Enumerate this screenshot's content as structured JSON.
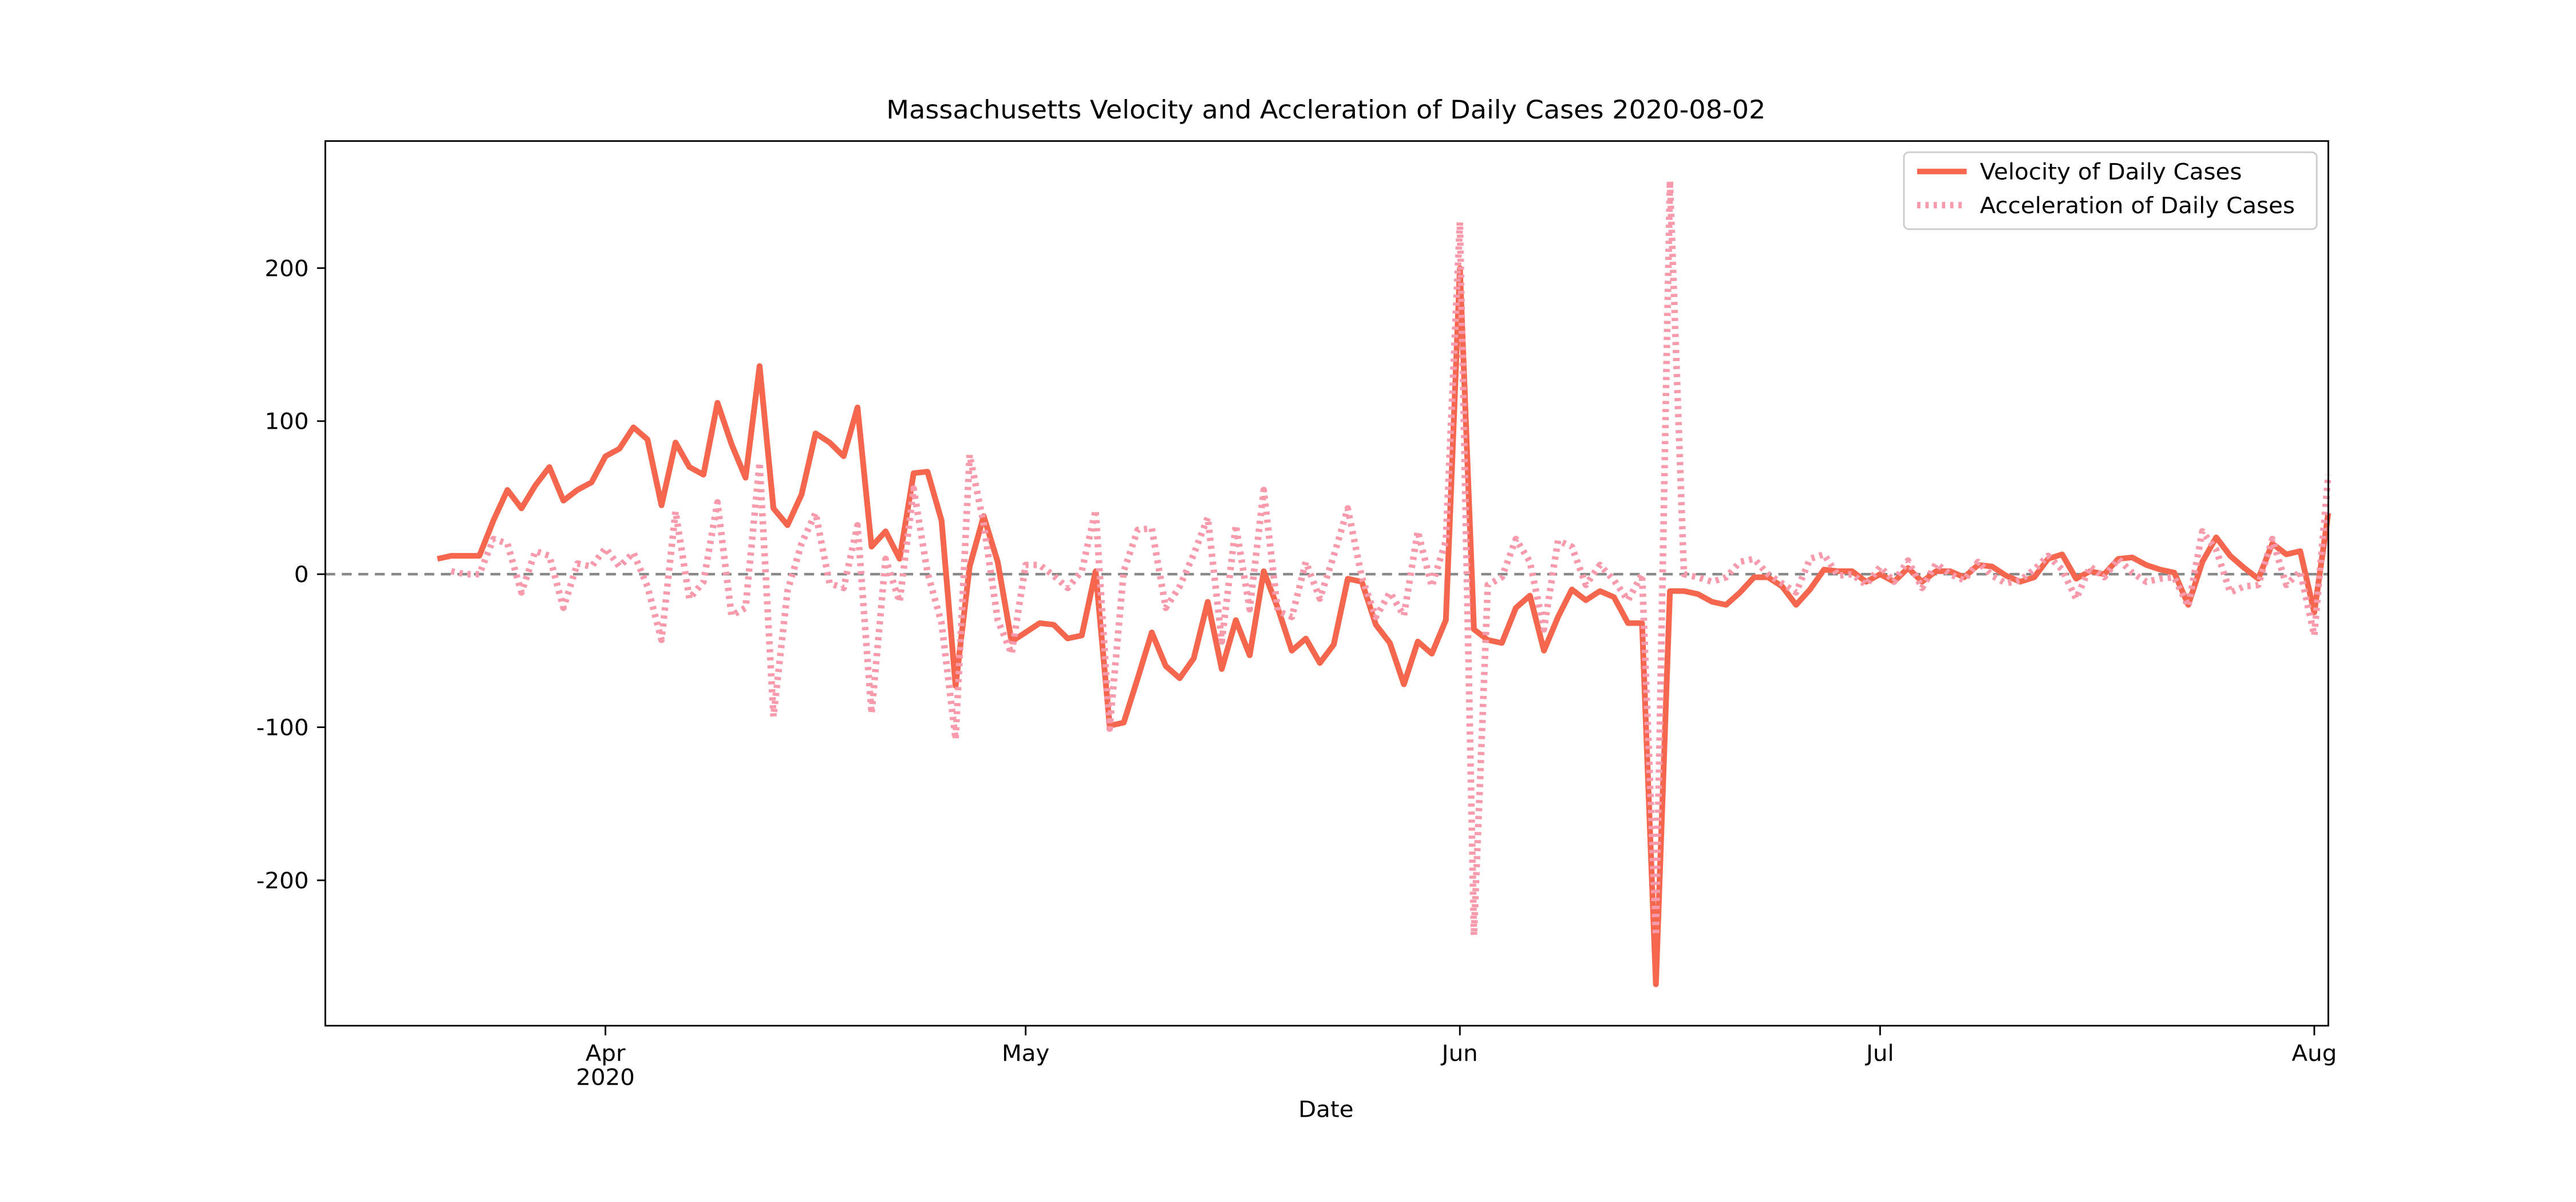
{
  "chart_data": {
    "type": "line",
    "title": "Massachusetts Velocity and Accleration of Daily Cases 2020-08-02",
    "xlabel": "Date",
    "x": [
      "2020-03-20",
      "2020-03-21",
      "2020-03-22",
      "2020-03-23",
      "2020-03-24",
      "2020-03-25",
      "2020-03-26",
      "2020-03-27",
      "2020-03-28",
      "2020-03-29",
      "2020-03-30",
      "2020-03-31",
      "2020-04-01",
      "2020-04-02",
      "2020-04-03",
      "2020-04-04",
      "2020-04-05",
      "2020-04-06",
      "2020-04-07",
      "2020-04-08",
      "2020-04-09",
      "2020-04-10",
      "2020-04-11",
      "2020-04-12",
      "2020-04-13",
      "2020-04-14",
      "2020-04-15",
      "2020-04-16",
      "2020-04-17",
      "2020-04-18",
      "2020-04-19",
      "2020-04-20",
      "2020-04-21",
      "2020-04-22",
      "2020-04-23",
      "2020-04-24",
      "2020-04-25",
      "2020-04-26",
      "2020-04-27",
      "2020-04-28",
      "2020-04-29",
      "2020-04-30",
      "2020-05-01",
      "2020-05-02",
      "2020-05-03",
      "2020-05-04",
      "2020-05-05",
      "2020-05-06",
      "2020-05-07",
      "2020-05-08",
      "2020-05-09",
      "2020-05-10",
      "2020-05-11",
      "2020-05-12",
      "2020-05-13",
      "2020-05-14",
      "2020-05-15",
      "2020-05-16",
      "2020-05-17",
      "2020-05-18",
      "2020-05-19",
      "2020-05-20",
      "2020-05-21",
      "2020-05-22",
      "2020-05-23",
      "2020-05-24",
      "2020-05-25",
      "2020-05-26",
      "2020-05-27",
      "2020-05-28",
      "2020-05-29",
      "2020-05-30",
      "2020-05-31",
      "2020-06-01",
      "2020-06-02",
      "2020-06-03",
      "2020-06-04",
      "2020-06-05",
      "2020-06-06",
      "2020-06-07",
      "2020-06-08",
      "2020-06-09",
      "2020-06-10",
      "2020-06-11",
      "2020-06-12",
      "2020-06-13",
      "2020-06-14",
      "2020-06-15",
      "2020-06-16",
      "2020-06-17",
      "2020-06-18",
      "2020-06-19",
      "2020-06-20",
      "2020-06-21",
      "2020-06-22",
      "2020-06-23",
      "2020-06-24",
      "2020-06-25",
      "2020-06-26",
      "2020-06-27",
      "2020-06-28",
      "2020-06-29",
      "2020-06-30",
      "2020-07-01",
      "2020-07-02",
      "2020-07-03",
      "2020-07-04",
      "2020-07-05",
      "2020-07-06",
      "2020-07-07",
      "2020-07-08",
      "2020-07-09",
      "2020-07-10",
      "2020-07-11",
      "2020-07-12",
      "2020-07-13",
      "2020-07-14",
      "2020-07-15",
      "2020-07-16",
      "2020-07-17",
      "2020-07-18",
      "2020-07-19",
      "2020-07-20",
      "2020-07-21",
      "2020-07-22",
      "2020-07-23",
      "2020-07-24",
      "2020-07-25",
      "2020-07-26",
      "2020-07-27",
      "2020-07-28",
      "2020-07-29",
      "2020-07-30",
      "2020-07-31",
      "2020-08-01",
      "2020-08-02"
    ],
    "series": [
      {
        "name": "Velocity of Daily Cases",
        "color": "#f4674e",
        "style": "solid",
        "values": [
          10,
          12,
          12,
          12,
          35,
          55,
          43,
          58,
          70,
          48,
          55,
          60,
          77,
          82,
          96,
          88,
          45,
          86,
          70,
          65,
          112,
          85,
          63,
          136,
          43,
          32,
          52,
          92,
          86,
          77,
          109,
          18,
          28,
          10,
          66,
          67,
          35,
          -73,
          5,
          38,
          8,
          -44,
          -38,
          -32,
          -33,
          -42,
          -40,
          2,
          -99,
          -97,
          -68,
          -38,
          -60,
          -68,
          -55,
          -18,
          -62,
          -30,
          -53,
          2,
          -22,
          -50,
          -42,
          -58,
          -46,
          -3,
          -5,
          -33,
          -45,
          -72,
          -44,
          -52,
          -30,
          200,
          -36,
          -43,
          -45,
          -22,
          -14,
          -50,
          -28,
          -10,
          -17,
          -11,
          -15,
          -32,
          -32,
          -268,
          -11,
          -11,
          -13,
          -18,
          -20,
          -12,
          -2,
          -2,
          -8,
          -20,
          -10,
          3,
          2,
          2,
          -5,
          0,
          -5,
          4,
          -5,
          2,
          2,
          -2,
          6,
          5,
          -1,
          -5,
          -2,
          10,
          13,
          -3,
          2,
          0,
          10,
          11,
          6,
          3,
          1,
          -20,
          8,
          24,
          12,
          4,
          -3,
          20,
          13,
          15,
          -25,
          40
        ]
      },
      {
        "name": "Acceleration of Daily Cases",
        "color": "#f79aac",
        "style": "dotted",
        "values": [
          null,
          2,
          0,
          0,
          23,
          20,
          -12,
          15,
          12,
          -22,
          7,
          5,
          17,
          5,
          14,
          -8,
          -43,
          41,
          -16,
          -5,
          47,
          -27,
          -22,
          73,
          -93,
          -11,
          20,
          40,
          -6,
          -9,
          32,
          -91,
          10,
          -18,
          56,
          1,
          -32,
          -108,
          78,
          33,
          -30,
          -52,
          6,
          6,
          -1,
          -9,
          2,
          42,
          -101,
          2,
          29,
          30,
          -22,
          -8,
          13,
          37,
          -44,
          32,
          -23,
          55,
          -24,
          -28,
          8,
          -16,
          12,
          43,
          -2,
          -28,
          -12,
          -27,
          28,
          -8,
          22,
          230,
          -236,
          -7,
          -2,
          23,
          8,
          -36,
          22,
          18,
          -7,
          6,
          -4,
          -17,
          0,
          -236,
          257,
          0,
          -2,
          -5,
          -2,
          8,
          10,
          0,
          -6,
          -12,
          10,
          13,
          -1,
          0,
          -7,
          5,
          -5,
          9,
          -9,
          7,
          0,
          -4,
          8,
          -1,
          -6,
          -4,
          3,
          12,
          3,
          -16,
          5,
          -2,
          10,
          1,
          -5,
          -3,
          -2,
          -21,
          28,
          16,
          -12,
          -8,
          -7,
          23,
          -7,
          2,
          -40,
          65
        ]
      }
    ],
    "xlim": [
      "2020-03-12",
      "2020-08-02"
    ],
    "xticks": [
      {
        "value": "2020-04-01",
        "label": "Apr\n2020"
      },
      {
        "value": "2020-05-01",
        "label": "May"
      },
      {
        "value": "2020-06-01",
        "label": "Jun"
      },
      {
        "value": "2020-07-01",
        "label": "Jul"
      },
      {
        "value": "2020-08-01",
        "label": "Aug"
      }
    ],
    "ylim": [
      -295,
      283
    ],
    "yticks": [
      -200,
      -100,
      0,
      100,
      200
    ],
    "hline": 0,
    "grid": false,
    "legend": "upper right"
  }
}
